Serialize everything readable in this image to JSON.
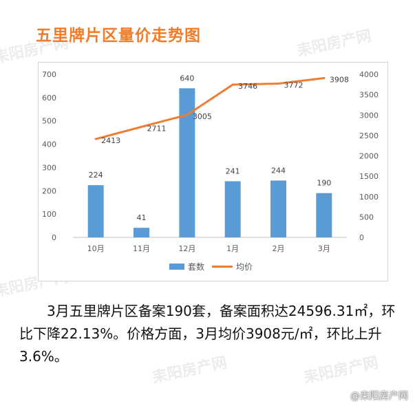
{
  "title": "五里牌片区量价走势图",
  "watermark": "耒阳房产网",
  "brand": "@耒阳房产网",
  "paragraph": "3月五里牌片区备案190套，备案面积达24596.31㎡，环比下降22.13%。价格方面，3月均价3908元/㎡，环比上升3.6%。",
  "chart_data": {
    "type": "bar+line",
    "categories": [
      "10月",
      "11月",
      "12月",
      "1月",
      "2月",
      "3月"
    ],
    "series": [
      {
        "name": "套数",
        "type": "bar",
        "axis": "left",
        "values": [
          224,
          41,
          640,
          241,
          244,
          190
        ],
        "color": "#5b9bd5"
      },
      {
        "name": "均价",
        "type": "line",
        "axis": "right",
        "values": [
          2413,
          2711,
          3005,
          3746,
          3772,
          3908
        ],
        "color": "#ed7d31"
      }
    ],
    "y_left": {
      "min": 0,
      "max": 700,
      "ticks": [
        0,
        100,
        200,
        300,
        400,
        500,
        600,
        700
      ]
    },
    "y_right": {
      "min": 0,
      "max": 4000,
      "ticks": [
        0,
        500,
        1000,
        1500,
        2000,
        2500,
        3000,
        3500,
        4000
      ]
    },
    "legend_position": "bottom",
    "grid": false
  }
}
